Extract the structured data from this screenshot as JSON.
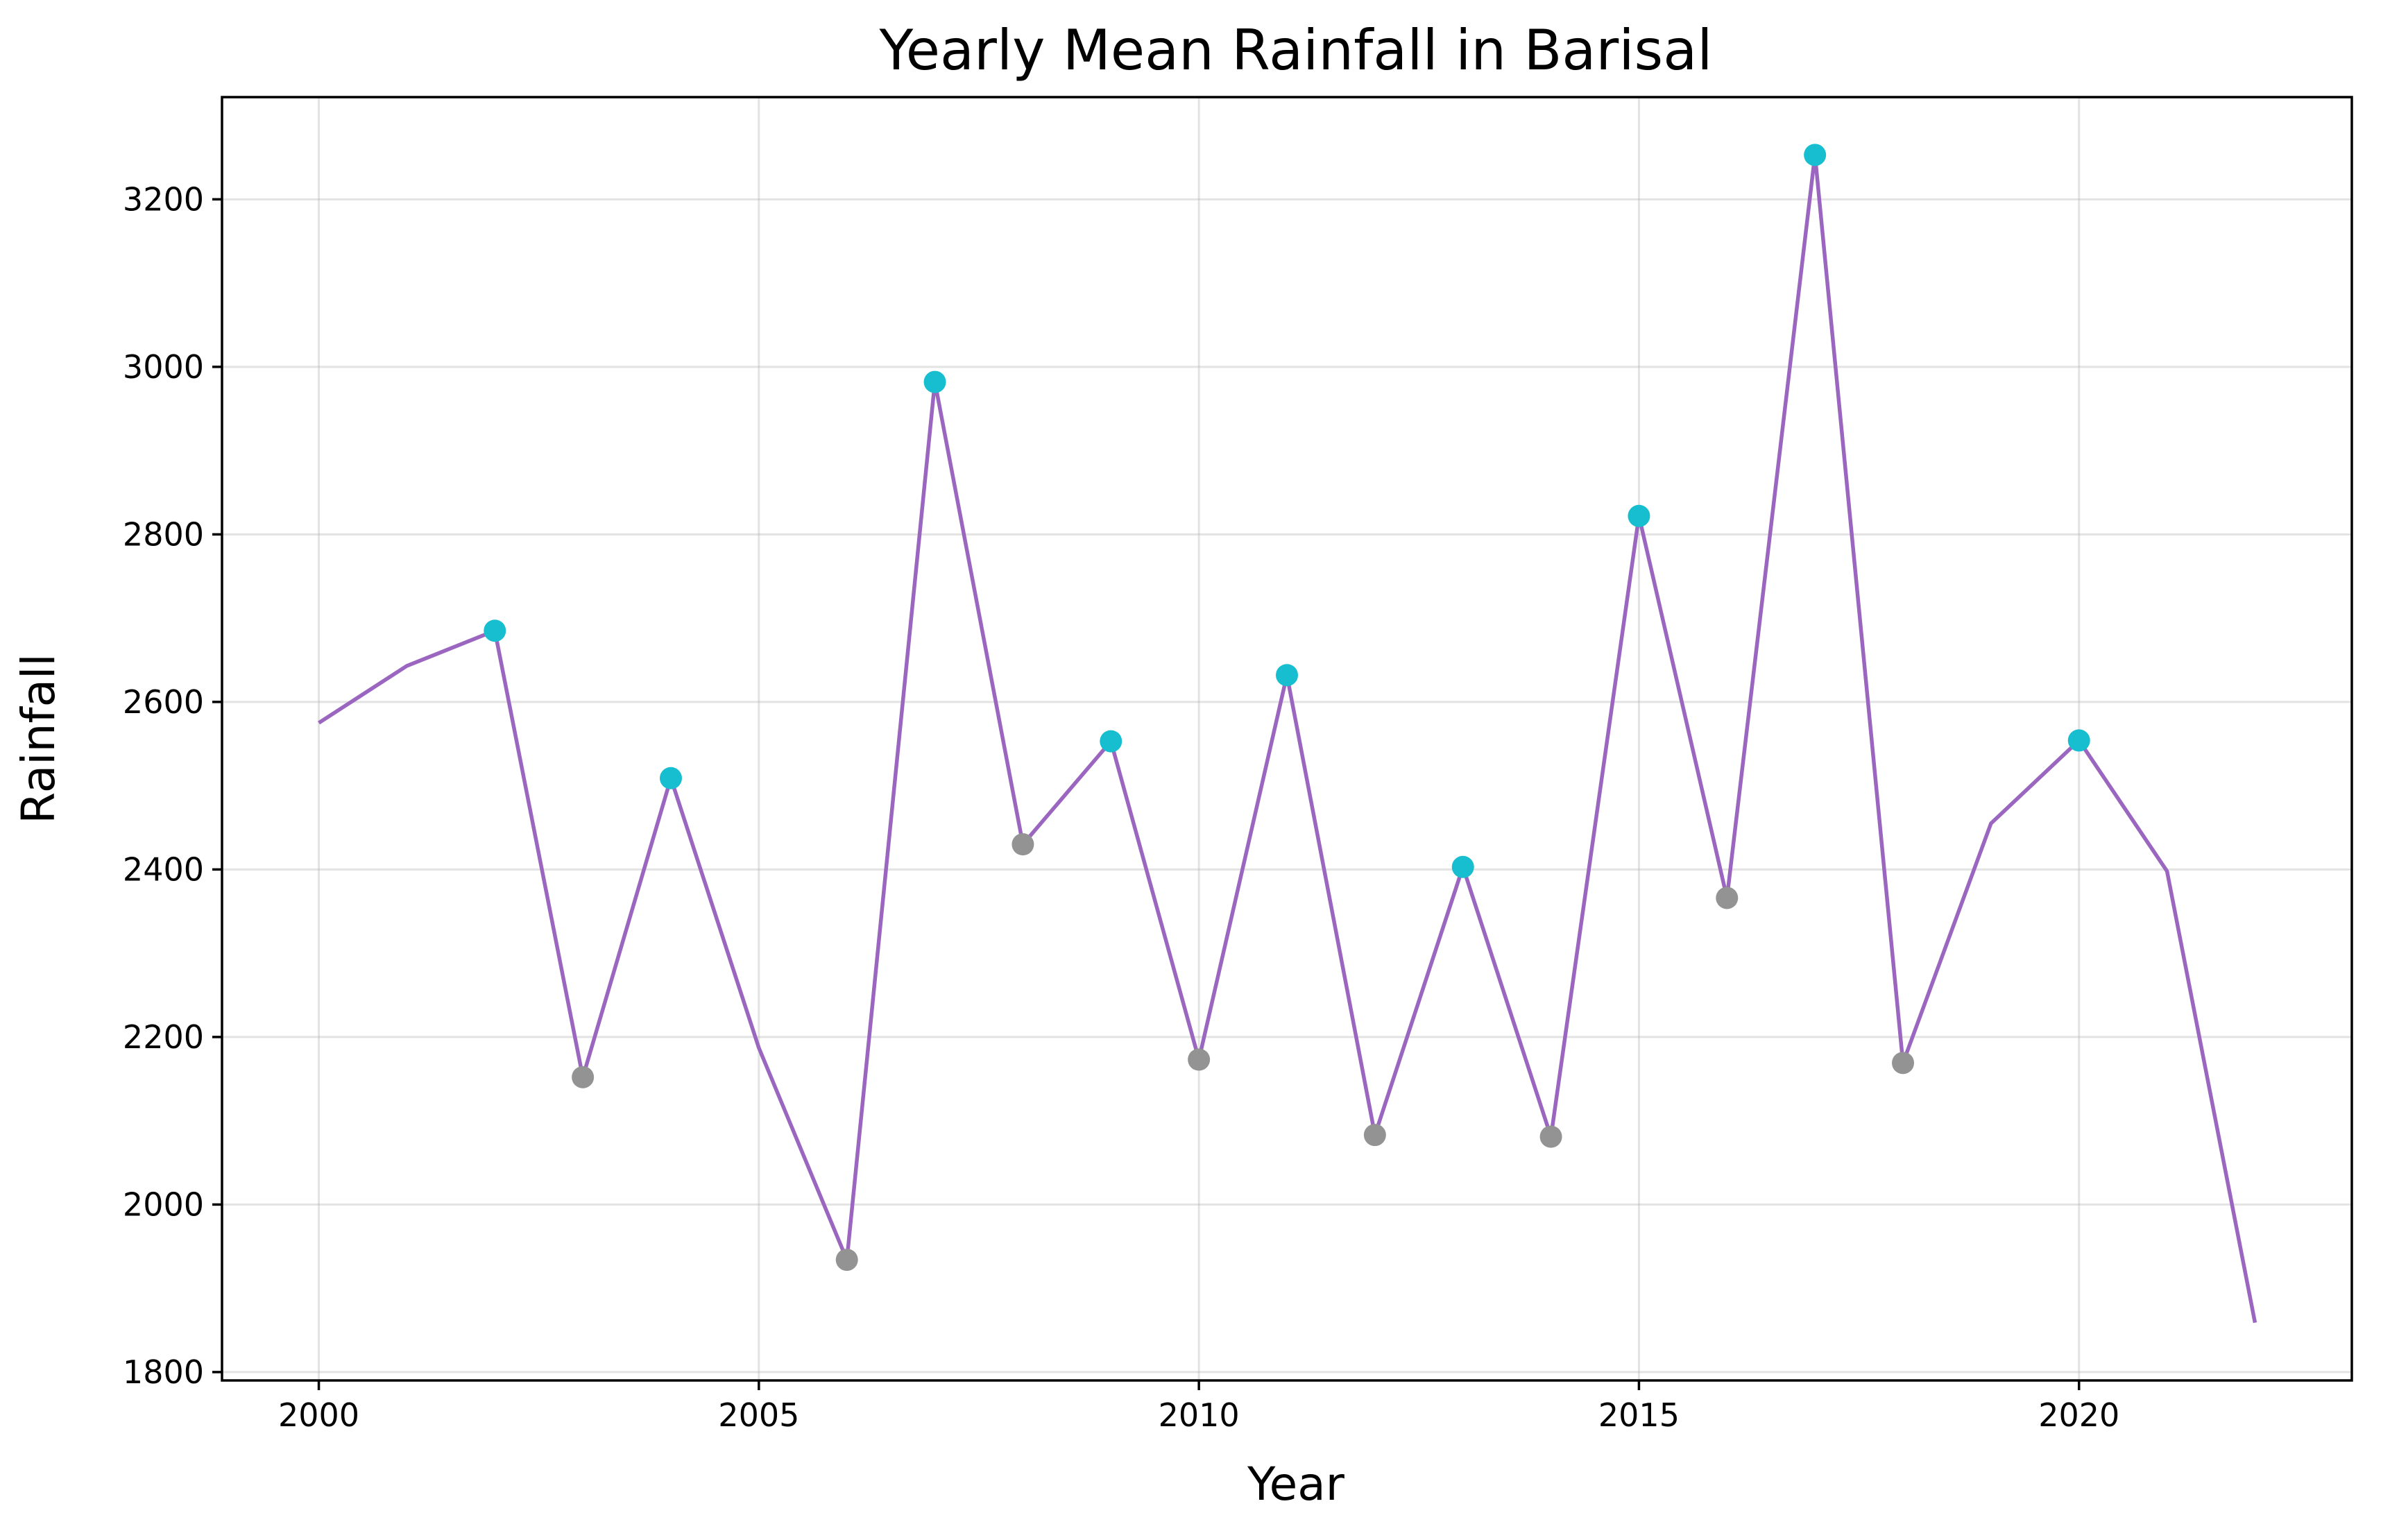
{
  "chart_data": {
    "type": "line",
    "title": "Yearly Mean Rainfall in Barisal",
    "xlabel": "Year",
    "ylabel": "Rainfall",
    "xlim": [
      1998.9,
      2023.1
    ],
    "ylim": [
      1790,
      3322
    ],
    "xticks": [
      2000,
      2005,
      2010,
      2015,
      2020
    ],
    "yticks": [
      1800,
      2000,
      2200,
      2400,
      2600,
      2800,
      3000,
      3200
    ],
    "grid": true,
    "x": [
      2000,
      2001,
      2002,
      2003,
      2004,
      2005,
      2006,
      2007,
      2008,
      2009,
      2010,
      2011,
      2012,
      2013,
      2014,
      2015,
      2016,
      2017,
      2018,
      2019,
      2020,
      2021,
      2022
    ],
    "series": [
      {
        "values": [
          2575,
          2643,
          2685,
          2152,
          2509,
          2187,
          1934,
          2982,
          2430,
          2553,
          2173,
          2632,
          2083,
          2403,
          2081,
          2822,
          2366,
          3253,
          2169,
          2455,
          2554,
          2398,
          1859
        ]
      }
    ],
    "peak_markers": [
      {
        "x": 2002,
        "y": 2685
      },
      {
        "x": 2004,
        "y": 2509
      },
      {
        "x": 2007,
        "y": 2982
      },
      {
        "x": 2009,
        "y": 2553
      },
      {
        "x": 2011,
        "y": 2632
      },
      {
        "x": 2013,
        "y": 2403
      },
      {
        "x": 2015,
        "y": 2822
      },
      {
        "x": 2017,
        "y": 3253
      },
      {
        "x": 2020,
        "y": 2554
      }
    ],
    "trough_markers": [
      {
        "x": 2003,
        "y": 2152
      },
      {
        "x": 2006,
        "y": 1934
      },
      {
        "x": 2008,
        "y": 2430
      },
      {
        "x": 2010,
        "y": 2173
      },
      {
        "x": 2012,
        "y": 2083
      },
      {
        "x": 2014,
        "y": 2081
      },
      {
        "x": 2016,
        "y": 2366
      },
      {
        "x": 2018,
        "y": 2169
      }
    ],
    "colors": {
      "line": "#9b66bf",
      "peak": "#17becf",
      "trough": "#939393"
    }
  }
}
